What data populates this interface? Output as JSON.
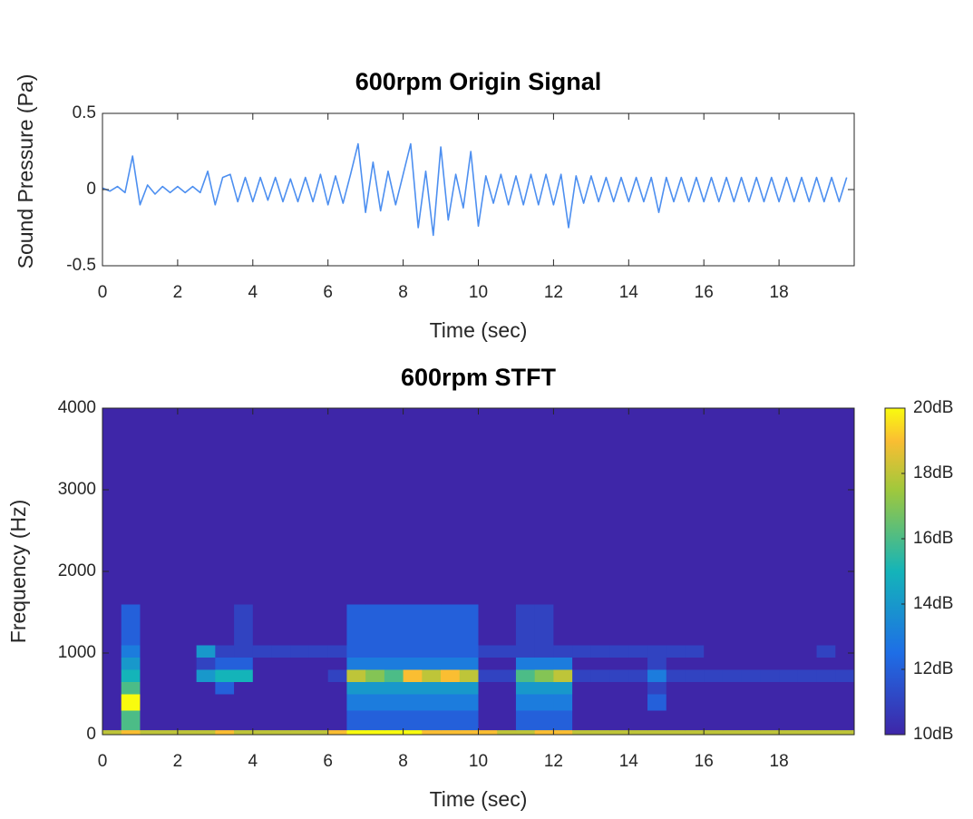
{
  "chart_data": [
    {
      "type": "line",
      "title": "600rpm Origin Signal",
      "x_label": "Time (sec)",
      "y_label": "Sound Pressure (Pa)",
      "xlim": [
        0,
        20
      ],
      "xticks": [
        0,
        2,
        4,
        6,
        8,
        10,
        12,
        14,
        16,
        18
      ],
      "ylim": [
        -0.5,
        0.5
      ],
      "yticks": [
        -0.5,
        0,
        0.5
      ],
      "x": [
        0,
        0.2,
        0.4,
        0.6,
        0.8,
        1.0,
        1.2,
        1.4,
        1.6,
        1.8,
        2.0,
        2.2,
        2.4,
        2.6,
        2.8,
        3.0,
        3.2,
        3.4,
        3.6,
        3.8,
        4.0,
        4.2,
        4.4,
        4.6,
        4.8,
        5.0,
        5.2,
        5.4,
        5.6,
        5.8,
        6.0,
        6.2,
        6.4,
        6.6,
        6.8,
        7.0,
        7.2,
        7.4,
        7.6,
        7.8,
        8.0,
        8.2,
        8.4,
        8.6,
        8.8,
        9.0,
        9.2,
        9.4,
        9.6,
        9.8,
        10.0,
        10.2,
        10.4,
        10.6,
        10.8,
        11.0,
        11.2,
        11.4,
        11.6,
        11.8,
        12.0,
        12.2,
        12.4,
        12.6,
        12.8,
        13.0,
        13.2,
        13.4,
        13.6,
        13.8,
        14.0,
        14.2,
        14.4,
        14.6,
        14.8,
        15.0,
        15.2,
        15.4,
        15.6,
        15.8,
        16.0,
        16.2,
        16.4,
        16.6,
        16.8,
        17.0,
        17.2,
        17.4,
        17.6,
        17.8,
        18.0,
        18.2,
        18.4,
        18.6,
        18.8,
        19.0,
        19.2,
        19.4,
        19.6,
        19.8
      ],
      "color": "#4d8ff0",
      "values": [
        0.01,
        -0.01,
        0.02,
        -0.02,
        0.22,
        -0.1,
        0.03,
        -0.03,
        0.02,
        -0.02,
        0.02,
        -0.02,
        0.02,
        -0.02,
        0.12,
        -0.1,
        0.08,
        0.1,
        -0.08,
        0.08,
        -0.08,
        0.08,
        -0.07,
        0.08,
        -0.08,
        0.07,
        -0.08,
        0.08,
        -0.08,
        0.1,
        -0.1,
        0.09,
        -0.09,
        0.1,
        0.3,
        -0.15,
        0.18,
        -0.14,
        0.12,
        -0.1,
        0.1,
        0.3,
        -0.25,
        0.12,
        -0.3,
        0.28,
        -0.2,
        0.1,
        -0.12,
        0.25,
        -0.24,
        0.09,
        -0.09,
        0.1,
        -0.1,
        0.09,
        -0.1,
        0.1,
        -0.1,
        0.1,
        -0.1,
        0.1,
        -0.25,
        0.09,
        -0.09,
        0.09,
        -0.08,
        0.08,
        -0.08,
        0.08,
        -0.08,
        0.08,
        -0.08,
        0.08,
        -0.15,
        0.08,
        -0.08,
        0.08,
        -0.08,
        0.08,
        -0.08,
        0.08,
        -0.08,
        0.08,
        -0.08,
        0.08,
        -0.08,
        0.08,
        -0.08,
        0.08,
        -0.08,
        0.08,
        -0.08,
        0.08,
        -0.08,
        0.08,
        -0.08,
        0.08,
        -0.08,
        0.08
      ]
    },
    {
      "type": "heatmap",
      "title": "600rpm STFT",
      "x_label": "Time (sec)",
      "y_label": "Frequency (Hz)",
      "xlim": [
        0,
        20
      ],
      "xticks": [
        0,
        2,
        4,
        6,
        8,
        10,
        12,
        14,
        16,
        18
      ],
      "ylim": [
        0,
        4000
      ],
      "yticks": [
        0,
        1000,
        2000,
        3000,
        4000
      ],
      "x_edges": [
        0,
        0.5,
        1,
        1.5,
        2,
        2.5,
        3,
        3.5,
        4,
        4.5,
        5,
        5.5,
        6,
        6.5,
        7,
        7.5,
        8,
        8.5,
        9,
        9.5,
        10,
        10.5,
        11,
        11.5,
        12,
        12.5,
        13,
        13.5,
        14,
        14.5,
        15,
        15.5,
        16,
        16.5,
        17,
        17.5,
        18,
        18.5,
        19,
        19.5,
        20
      ],
      "y_edges": [
        0,
        60,
        300,
        500,
        650,
        800,
        950,
        1100,
        1600,
        4000
      ],
      "z": [
        [
          18,
          19,
          18,
          18,
          18,
          18,
          19,
          18,
          18,
          18,
          18,
          18,
          19,
          20,
          20,
          20,
          20,
          19,
          19,
          19,
          19,
          18,
          18,
          19,
          19,
          18,
          18,
          18,
          18,
          18,
          18,
          18,
          18,
          18,
          18,
          18,
          18,
          18,
          18,
          18
        ],
        [
          10,
          16,
          10,
          10,
          10,
          10,
          10,
          10,
          10,
          10,
          10,
          10,
          10,
          12,
          12,
          12,
          12,
          12,
          12,
          12,
          10,
          10,
          12,
          12,
          12,
          10,
          10,
          10,
          10,
          10,
          10,
          10,
          10,
          10,
          10,
          10,
          10,
          10,
          10,
          10
        ],
        [
          10,
          20,
          10,
          10,
          10,
          10,
          10,
          10,
          10,
          10,
          10,
          10,
          10,
          13,
          13,
          13,
          13,
          13,
          13,
          13,
          10,
          10,
          13,
          13,
          13,
          10,
          10,
          10,
          10,
          12,
          10,
          10,
          10,
          10,
          10,
          10,
          10,
          10,
          10,
          10
        ],
        [
          10,
          16,
          10,
          10,
          10,
          10,
          12,
          10,
          10,
          10,
          10,
          10,
          10,
          14,
          14,
          14,
          14,
          14,
          14,
          14,
          10,
          10,
          14,
          14,
          14,
          10,
          10,
          10,
          10,
          11,
          10,
          10,
          10,
          10,
          10,
          10,
          10,
          10,
          10,
          10
        ],
        [
          10,
          15,
          10,
          10,
          10,
          14,
          15,
          15,
          10,
          10,
          10,
          10,
          11,
          18,
          17,
          16,
          19,
          18,
          19,
          18,
          11,
          11,
          16,
          17,
          18,
          11,
          11,
          11,
          11,
          13,
          11,
          11,
          11,
          11,
          11,
          11,
          11,
          11,
          11,
          11
        ],
        [
          10,
          14,
          10,
          10,
          10,
          11,
          12,
          12,
          10,
          10,
          10,
          10,
          10,
          13,
          13,
          13,
          13,
          13,
          13,
          13,
          10,
          10,
          13,
          13,
          13,
          10,
          10,
          10,
          10,
          11,
          10,
          10,
          10,
          10,
          10,
          10,
          10,
          10,
          10,
          10
        ],
        [
          10,
          13,
          10,
          10,
          10,
          14,
          11,
          11,
          11,
          11,
          11,
          11,
          11,
          12,
          12,
          12,
          12,
          12,
          12,
          12,
          11,
          11,
          11,
          11,
          11,
          11,
          11,
          11,
          11,
          11,
          11,
          11,
          10,
          10,
          10,
          10,
          10,
          10,
          11,
          10
        ],
        [
          10,
          12,
          10,
          10,
          10,
          10,
          10,
          11,
          10,
          10,
          10,
          10,
          10,
          12,
          12,
          12,
          12,
          12,
          12,
          12,
          10,
          10,
          11,
          11,
          10,
          10,
          10,
          10,
          10,
          10,
          10,
          10,
          10,
          10,
          10,
          10,
          10,
          10,
          10,
          10
        ],
        [
          10,
          10,
          10,
          10,
          10,
          10,
          10,
          10,
          10,
          10,
          10,
          10,
          10,
          10,
          10,
          10,
          10,
          10,
          10,
          10,
          10,
          10,
          10,
          10,
          10,
          10,
          10,
          10,
          10,
          10,
          10,
          10,
          10,
          10,
          10,
          10,
          10,
          10,
          10,
          10
        ]
      ],
      "clim": [
        10,
        20
      ],
      "cticks": [
        {
          "value": 10,
          "label": "10dB"
        },
        {
          "value": 12,
          "label": "12dB"
        },
        {
          "value": 14,
          "label": "14dB"
        },
        {
          "value": 16,
          "label": "16dB"
        },
        {
          "value": 18,
          "label": "18dB"
        },
        {
          "value": 20,
          "label": "20dB"
        }
      ]
    }
  ]
}
